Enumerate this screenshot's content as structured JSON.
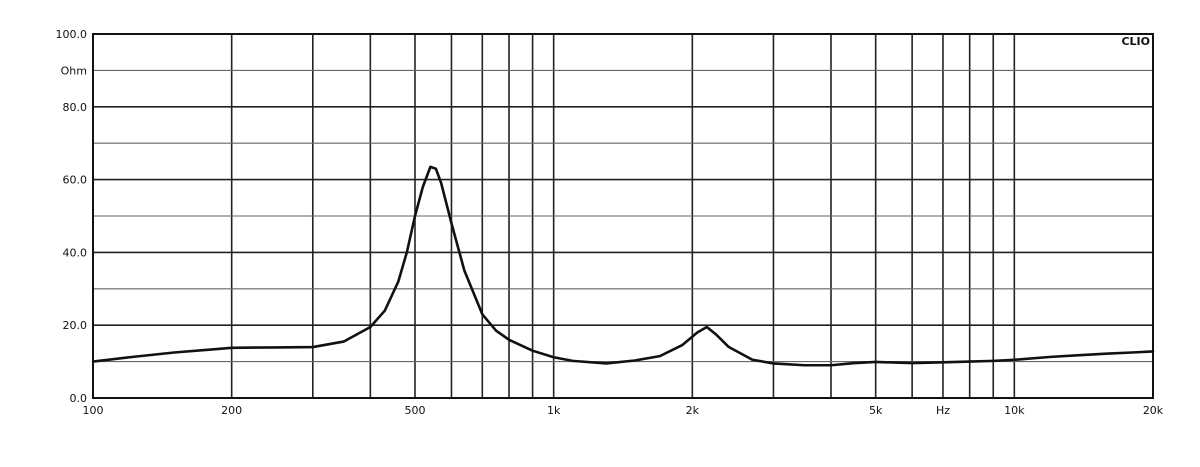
{
  "chart_data": {
    "type": "line",
    "title": "",
    "xlabel": "",
    "ylabel": "",
    "brand": "CLIO",
    "x_scale": "log",
    "xlim": [
      100,
      20000
    ],
    "ylim": [
      0,
      100
    ],
    "grid": true,
    "y_tick_labels": [
      {
        "value": 100,
        "label": "100.0"
      },
      {
        "value": 90,
        "label": "Ohm"
      },
      {
        "value": 80,
        "label": "80.0"
      },
      {
        "value": 60,
        "label": "60.0"
      },
      {
        "value": 40,
        "label": "40.0"
      },
      {
        "value": 20,
        "label": "20.0"
      },
      {
        "value": 0,
        "label": "0.0"
      }
    ],
    "y_gridlines": [
      0,
      10,
      20,
      30,
      40,
      50,
      60,
      70,
      80,
      90,
      100
    ],
    "x_tick_labels": [
      {
        "value": 100,
        "label": "100"
      },
      {
        "value": 200,
        "label": "200"
      },
      {
        "value": 500,
        "label": "500"
      },
      {
        "value": 1000,
        "label": "1k"
      },
      {
        "value": 2000,
        "label": "2k"
      },
      {
        "value": 5000,
        "label": "5k"
      },
      {
        "value": 7000,
        "label": "Hz"
      },
      {
        "value": 10000,
        "label": "10k"
      },
      {
        "value": 20000,
        "label": "20k"
      }
    ],
    "x_gridlines": [
      200,
      300,
      400,
      500,
      600,
      700,
      800,
      900,
      1000,
      2000,
      3000,
      4000,
      5000,
      6000,
      7000,
      8000,
      9000,
      10000
    ],
    "series": [
      {
        "color": "#111111",
        "points": [
          [
            100,
            10.0
          ],
          [
            120,
            11.2
          ],
          [
            150,
            12.5
          ],
          [
            180,
            13.3
          ],
          [
            200,
            13.8
          ],
          [
            250,
            13.9
          ],
          [
            300,
            14.0
          ],
          [
            350,
            15.5
          ],
          [
            400,
            19.5
          ],
          [
            430,
            24
          ],
          [
            460,
            32
          ],
          [
            480,
            40
          ],
          [
            500,
            50
          ],
          [
            520,
            58
          ],
          [
            540,
            63.5
          ],
          [
            555,
            63.0
          ],
          [
            570,
            59
          ],
          [
            600,
            48
          ],
          [
            640,
            35
          ],
          [
            700,
            23
          ],
          [
            750,
            18.5
          ],
          [
            800,
            16
          ],
          [
            900,
            13
          ],
          [
            1000,
            11.2
          ],
          [
            1100,
            10.2
          ],
          [
            1300,
            9.5
          ],
          [
            1500,
            10.3
          ],
          [
            1700,
            11.5
          ],
          [
            1900,
            14.5
          ],
          [
            2050,
            18
          ],
          [
            2150,
            19.5
          ],
          [
            2250,
            17.5
          ],
          [
            2400,
            14
          ],
          [
            2700,
            10.5
          ],
          [
            3000,
            9.5
          ],
          [
            3500,
            9.0
          ],
          [
            4000,
            9.0
          ],
          [
            4500,
            9.6
          ],
          [
            5000,
            9.9
          ],
          [
            6000,
            9.6
          ],
          [
            7000,
            9.8
          ],
          [
            8000,
            10.0
          ],
          [
            9000,
            10.2
          ],
          [
            10000,
            10.5
          ],
          [
            12000,
            11.3
          ],
          [
            14000,
            11.8
          ],
          [
            16000,
            12.2
          ],
          [
            18000,
            12.5
          ],
          [
            20000,
            12.8
          ]
        ]
      }
    ]
  }
}
